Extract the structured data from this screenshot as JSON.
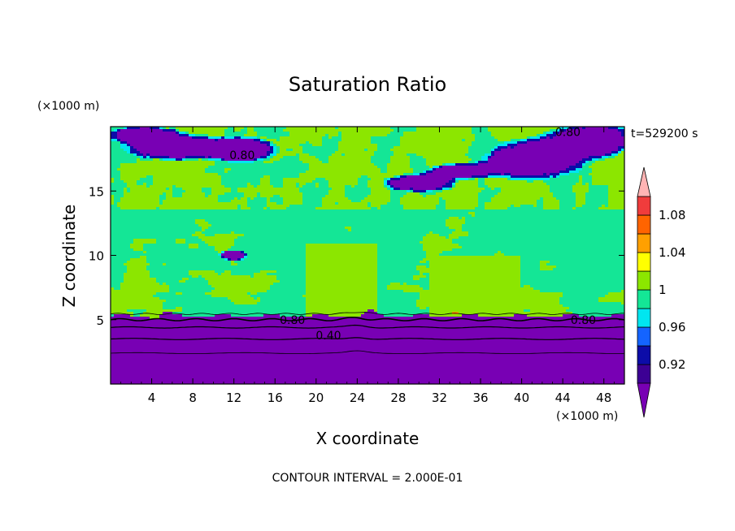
{
  "chart_data": {
    "type": "heatmap",
    "title": "Saturation Ratio",
    "xlabel": "X coordinate",
    "ylabel": "Z coordinate",
    "x_unit": "(×1000 m)",
    "y_unit": "(×1000 m)",
    "time_label": "t=529200 s",
    "footer": "CONTOUR INTERVAL = 2.000E-01",
    "xlim": [
      0,
      50
    ],
    "ylim": [
      0,
      20
    ],
    "x_ticks": [
      "4",
      "8",
      "12",
      "16",
      "20",
      "24",
      "28",
      "32",
      "36",
      "40",
      "44",
      "48"
    ],
    "x_tick_values": [
      4,
      8,
      12,
      16,
      20,
      24,
      28,
      32,
      36,
      40,
      44,
      48
    ],
    "y_ticks": [
      "5",
      "10",
      "15"
    ],
    "y_tick_values": [
      5,
      10,
      15
    ],
    "colorbar": {
      "levels": [
        0.9,
        0.92,
        0.94,
        0.96,
        0.98,
        1.0,
        1.02,
        1.04,
        1.06,
        1.08,
        1.1
      ],
      "labels": [
        "0.92",
        "0.96",
        "1",
        "1.04",
        "1.08"
      ],
      "label_values": [
        0.92,
        0.96,
        1.0,
        1.04,
        1.08
      ],
      "colors": [
        "#3c0094",
        "#0c0ca8",
        "#1464ff",
        "#00e6f0",
        "#14e696",
        "#8ce600",
        "#ffff00",
        "#ffa000",
        "#ff6400",
        "#f03c3c"
      ],
      "under_color": "#7800b4",
      "over_color": "#ffb4b4"
    },
    "contour_labels": [
      {
        "text": "0.80",
        "x": 17.7,
        "z": 5.0
      },
      {
        "text": "0.40",
        "x": 21.2,
        "z": 3.8
      },
      {
        "text": "0.80",
        "x": 46.0,
        "z": 5.0
      },
      {
        "text": "0.80",
        "x": 12.8,
        "z": 17.8
      },
      {
        "text": "0.80",
        "x": 44.5,
        "z": 19.6
      }
    ],
    "regions": {
      "lower_dry_layer_top_z": 5.3,
      "lower_inner_contour_z": 3.8,
      "mid_moist_band": [
        5.3,
        14.0
      ],
      "upper_dry_patches": [
        {
          "x": [
            2,
            16
          ],
          "z": [
            16.8,
            19.5
          ]
        },
        {
          "x": [
            26,
            36
          ],
          "z": [
            14.5,
            16.5
          ]
        },
        {
          "x": [
            36,
            50
          ],
          "z": [
            15.5,
            20
          ]
        },
        {
          "x": [
            10,
            14
          ],
          "z": [
            9.5,
            10.5
          ]
        }
      ]
    }
  }
}
